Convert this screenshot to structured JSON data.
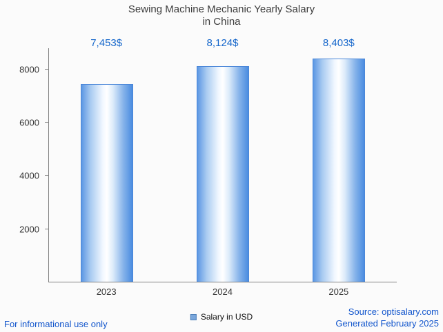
{
  "title": {
    "line1": "Sewing Machine Mechanic Yearly Salary",
    "line2": "in China"
  },
  "chart_data": {
    "type": "bar",
    "title": "Sewing Machine Mechanic Yearly Salary in China",
    "categories": [
      "2023",
      "2024",
      "2025"
    ],
    "values": [
      7453,
      8124,
      8403
    ],
    "value_labels": [
      "7,453$",
      "8,124$",
      "8,403$"
    ],
    "series_name": "Salary in USD",
    "xlabel": "",
    "ylabel": "",
    "ylim": [
      0,
      8800
    ],
    "yticks": [
      2000,
      4000,
      6000,
      8000
    ],
    "grid": false,
    "legend_position": "bottom-center",
    "bar_style": {
      "edge_color": "#4a86d8",
      "gradient": [
        "#5c97e3",
        "#ffffff",
        "#4a8ce0"
      ]
    }
  },
  "legend": {
    "label": "Salary in USD",
    "swatch_color": "#7aa7dc"
  },
  "footer": {
    "left": "For informational use only",
    "source": "Source: optisalary.com",
    "generated": "Generated February 2025"
  },
  "colors": {
    "value_label": "#1667cb",
    "footer_link": "#1155cc",
    "axis": "#808080",
    "title_text": "#3d3d3d",
    "background": "#fbfbfb"
  }
}
